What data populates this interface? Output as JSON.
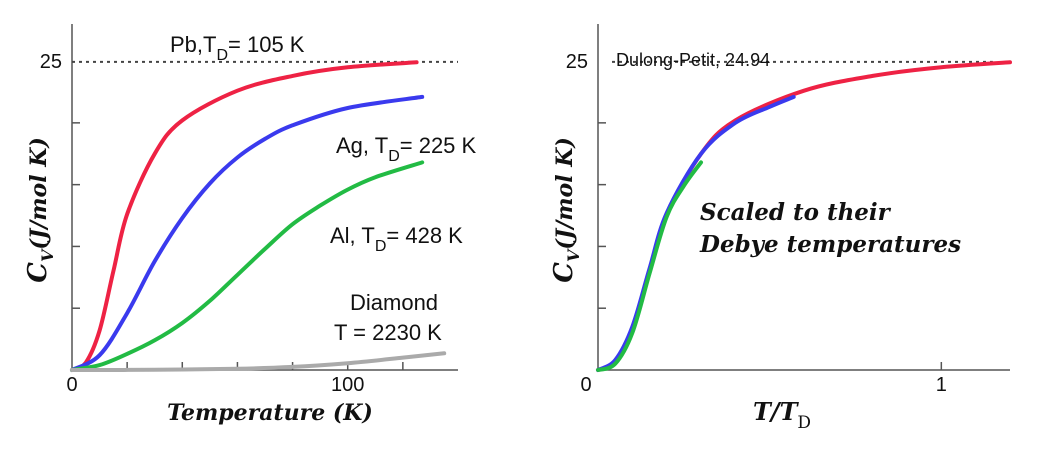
{
  "chart_data": [
    {
      "type": "line",
      "ylabel_main": "C",
      "ylabel_sub": "V",
      "ylabel_rest": "(J/mol K)",
      "xlabel": "Temperature (K)",
      "x_ticks": [
        "0",
        "100"
      ],
      "y_ticks": [
        "25"
      ],
      "xlim": [
        0,
        140
      ],
      "ylim": [
        0,
        28
      ],
      "reference_line": {
        "y": 24.94
      },
      "series": [
        {
          "name": "Pb",
          "label_prefix": "Pb,T",
          "label_sub": "D",
          "label_suffix": "= 105 K",
          "color": "#ee2244",
          "x_max": 125,
          "points": [
            [
              0,
              0
            ],
            [
              5,
              0.6
            ],
            [
              10,
              3.2
            ],
            [
              15,
              8.0
            ],
            [
              20,
              12.6
            ],
            [
              30,
              17.5
            ],
            [
              40,
              20.2
            ],
            [
              60,
              22.6
            ],
            [
              80,
              23.8
            ],
            [
              100,
              24.5
            ],
            [
              125,
              24.9
            ]
          ]
        },
        {
          "name": "Ag",
          "label_prefix": "Ag, T",
          "label_sub": "D",
          "label_suffix": "= 225 K",
          "color": "#3a3aee",
          "x_max": 127,
          "points": [
            [
              0,
              0
            ],
            [
              10,
              1.2
            ],
            [
              20,
              4.6
            ],
            [
              30,
              8.8
            ],
            [
              40,
              12.3
            ],
            [
              50,
              15.1
            ],
            [
              60,
              17.2
            ],
            [
              70,
              18.7
            ],
            [
              80,
              19.8
            ],
            [
              100,
              21.2
            ],
            [
              127,
              22.1
            ]
          ]
        },
        {
          "name": "Al",
          "label_prefix": "Al, T",
          "label_sub": "D",
          "label_suffix": "= 428 K",
          "color": "#22bb44",
          "x_max": 127,
          "points": [
            [
              0,
              0
            ],
            [
              10,
              0.4
            ],
            [
              20,
              1.3
            ],
            [
              30,
              2.4
            ],
            [
              40,
              3.8
            ],
            [
              50,
              5.6
            ],
            [
              60,
              7.7
            ],
            [
              70,
              9.8
            ],
            [
              80,
              11.8
            ],
            [
              90,
              13.3
            ],
            [
              100,
              14.6
            ],
            [
              110,
              15.6
            ],
            [
              127,
              16.8
            ]
          ]
        },
        {
          "name": "Diamond",
          "label_line1": "Diamond",
          "label_line2": "T  = 2230 K",
          "color": "#aaaaaa",
          "x_max": 135,
          "points": [
            [
              0,
              0
            ],
            [
              30,
              0.02
            ],
            [
              60,
              0.1
            ],
            [
              80,
              0.25
            ],
            [
              100,
              0.55
            ],
            [
              120,
              1.0
            ],
            [
              135,
              1.35
            ]
          ]
        }
      ]
    },
    {
      "type": "line",
      "ylabel_main": "C",
      "ylabel_sub": "V",
      "ylabel_rest": "(J/mol K)",
      "xlabel_main": "T/T",
      "xlabel_sub": "D",
      "x_ticks": [
        "0",
        "1"
      ],
      "y_ticks": [
        "25"
      ],
      "xlim": [
        0,
        1.2
      ],
      "ylim": [
        0,
        28
      ],
      "reference_line": {
        "y": 24.94,
        "label": "Dulong-Petit, 24.94"
      },
      "annotation": [
        "Scaled to their",
        "Debye temperatures"
      ],
      "series": [
        {
          "name": "Pb",
          "color": "#ee2244",
          "x_max": 1.2,
          "points": [
            [
              0,
              0
            ],
            [
              0.05,
              0.6
            ],
            [
              0.1,
              3.2
            ],
            [
              0.15,
              8.0
            ],
            [
              0.2,
              12.6
            ],
            [
              0.3,
              17.5
            ],
            [
              0.4,
              20.2
            ],
            [
              0.6,
              22.6
            ],
            [
              0.8,
              23.8
            ],
            [
              1.0,
              24.5
            ],
            [
              1.2,
              24.9
            ]
          ]
        },
        {
          "name": "Ag",
          "color": "#3a3aee",
          "x_max": 0.57,
          "points": [
            [
              0,
              0
            ],
            [
              0.05,
              0.8
            ],
            [
              0.1,
              3.5
            ],
            [
              0.15,
              8.2
            ],
            [
              0.2,
              12.7
            ],
            [
              0.3,
              17.5
            ],
            [
              0.4,
              20.0
            ],
            [
              0.5,
              21.3
            ],
            [
              0.57,
              22.1
            ]
          ]
        },
        {
          "name": "Al",
          "color": "#22bb44",
          "x_max": 0.3,
          "points": [
            [
              0,
              0
            ],
            [
              0.05,
              0.5
            ],
            [
              0.1,
              3.0
            ],
            [
              0.15,
              7.8
            ],
            [
              0.2,
              12.4
            ],
            [
              0.25,
              14.9
            ],
            [
              0.3,
              16.8
            ]
          ]
        }
      ]
    }
  ]
}
